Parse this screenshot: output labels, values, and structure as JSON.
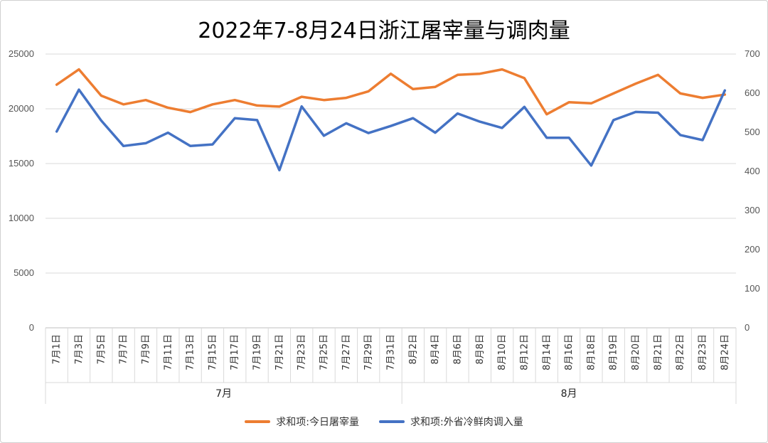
{
  "chart_data": {
    "type": "line",
    "title": "2022年7-8月24日浙江屠宰量与调肉量",
    "categories": [
      "7月1日",
      "7月3日",
      "7月5日",
      "7月7日",
      "7月9日",
      "7月11日",
      "7月13日",
      "7月15日",
      "7月17日",
      "7月19日",
      "7月21日",
      "7月23日",
      "7月25日",
      "7月27日",
      "7月29日",
      "7月31日",
      "8月2日",
      "8月4日",
      "8月6日",
      "8月8日",
      "8月10日",
      "8月12日",
      "8月14日",
      "8月16日",
      "8月18日",
      "8月19日",
      "8月20日",
      "8月21日",
      "8月22日",
      "8月23日",
      "8月24日"
    ],
    "groups": [
      {
        "label": "7月",
        "start": 0,
        "end": 15
      },
      {
        "label": "8月",
        "start": 16,
        "end": 30
      }
    ],
    "y_left": {
      "min": 0,
      "max": 25000,
      "ticks": [
        0,
        5000,
        10000,
        15000,
        20000,
        25000
      ]
    },
    "y_right": {
      "min": 0,
      "max": 700,
      "ticks": [
        0,
        100,
        200,
        300,
        400,
        500,
        600,
        700
      ]
    },
    "series": [
      {
        "name": "求和项:今日屠宰量",
        "axis": "left",
        "color": "#ED7D31",
        "values": [
          22200,
          23600,
          21200,
          20400,
          20800,
          20100,
          19700,
          20400,
          20800,
          20300,
          20200,
          21100,
          20800,
          21000,
          21600,
          23200,
          21800,
          22000,
          23100,
          23200,
          23600,
          22800,
          19500,
          20600,
          20500,
          21400,
          22300,
          23100,
          21400,
          21000,
          21300
        ]
      },
      {
        "name": "求和项:外省冷鲜肉调入量",
        "axis": "right",
        "color": "#4472C4",
        "values": [
          502,
          609,
          530,
          465,
          472,
          499,
          465,
          469,
          536,
          531,
          403,
          566,
          491,
          523,
          498,
          516,
          536,
          499,
          548,
          527,
          511,
          565,
          486,
          486,
          415,
          531,
          552,
          550,
          493,
          480,
          607
        ]
      }
    ]
  }
}
